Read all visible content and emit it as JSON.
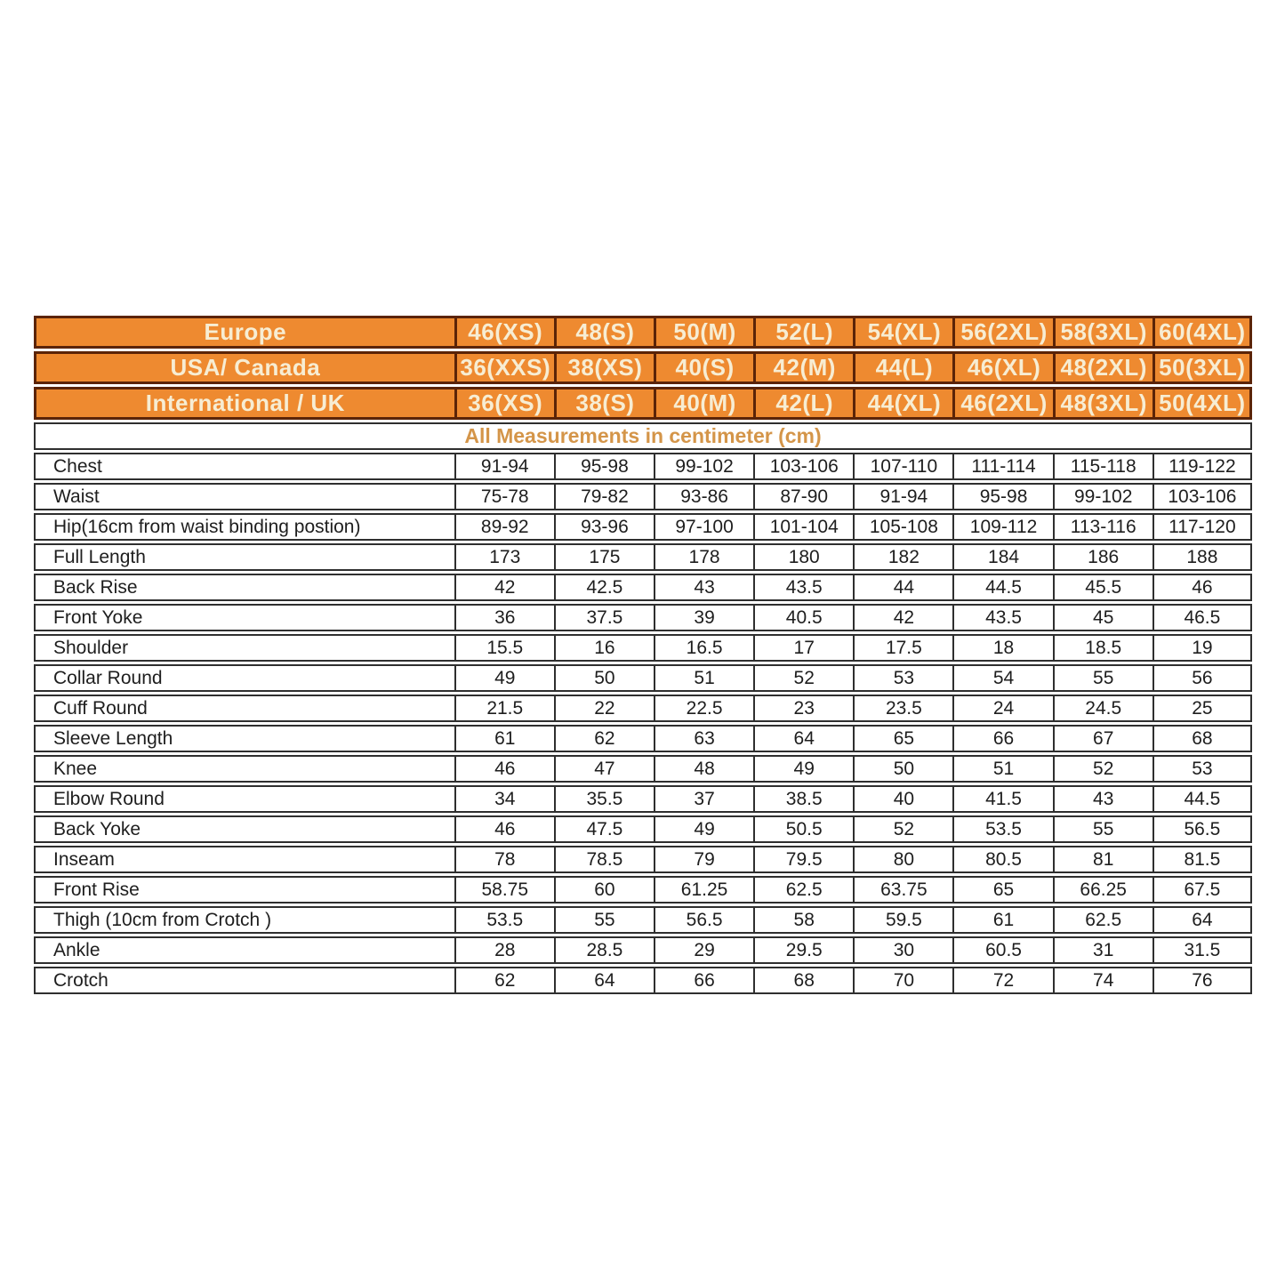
{
  "table": {
    "note": "All Measurements in centimeter (cm)",
    "header_rows": [
      {
        "label": "Europe",
        "sizes": [
          "46(XS)",
          "48(S)",
          "50(M)",
          "52(L)",
          "54(XL)",
          "56(2XL)",
          "58(3XL)",
          "60(4XL)"
        ]
      },
      {
        "label": "USA/ Canada",
        "sizes": [
          "36(XXS)",
          "38(XS)",
          "40(S)",
          "42(M)",
          "44(L)",
          "46(XL)",
          "48(2XL)",
          "50(3XL)"
        ]
      },
      {
        "label": "International / UK",
        "sizes": [
          "36(XS)",
          "38(S)",
          "40(M)",
          "42(L)",
          "44(XL)",
          "46(2XL)",
          "48(3XL)",
          "50(4XL)"
        ]
      }
    ],
    "rows": [
      {
        "label": "Chest",
        "values": [
          "91-94",
          "95-98",
          "99-102",
          "103-106",
          "107-110",
          "111-114",
          "115-118",
          "119-122"
        ]
      },
      {
        "label": "Waist",
        "values": [
          "75-78",
          "79-82",
          "93-86",
          "87-90",
          "91-94",
          "95-98",
          "99-102",
          "103-106"
        ]
      },
      {
        "label": "Hip(16cm from waist binding postion)",
        "values": [
          "89-92",
          "93-96",
          "97-100",
          "101-104",
          "105-108",
          "109-112",
          "113-116",
          "117-120"
        ]
      },
      {
        "label": "Full Length",
        "values": [
          "173",
          "175",
          "178",
          "180",
          "182",
          "184",
          "186",
          "188"
        ]
      },
      {
        "label": "Back Rise",
        "values": [
          "42",
          "42.5",
          "43",
          "43.5",
          "44",
          "44.5",
          "45.5",
          "46"
        ]
      },
      {
        "label": "Front Yoke",
        "values": [
          "36",
          "37.5",
          "39",
          "40.5",
          "42",
          "43.5",
          "45",
          "46.5"
        ]
      },
      {
        "label": "Shoulder",
        "values": [
          "15.5",
          "16",
          "16.5",
          "17",
          "17.5",
          "18",
          "18.5",
          "19"
        ]
      },
      {
        "label": "Collar Round",
        "values": [
          "49",
          "50",
          "51",
          "52",
          "53",
          "54",
          "55",
          "56"
        ]
      },
      {
        "label": "Cuff Round",
        "values": [
          "21.5",
          "22",
          "22.5",
          "23",
          "23.5",
          "24",
          "24.5",
          "25"
        ]
      },
      {
        "label": "Sleeve Length",
        "values": [
          "61",
          "62",
          "63",
          "64",
          "65",
          "66",
          "67",
          "68"
        ]
      },
      {
        "label": "Knee",
        "values": [
          "46",
          "47",
          "48",
          "49",
          "50",
          "51",
          "52",
          "53"
        ]
      },
      {
        "label": "Elbow Round",
        "values": [
          "34",
          "35.5",
          "37",
          "38.5",
          "40",
          "41.5",
          "43",
          "44.5"
        ]
      },
      {
        "label": "Back Yoke",
        "values": [
          "46",
          "47.5",
          "49",
          "50.5",
          "52",
          "53.5",
          "55",
          "56.5"
        ]
      },
      {
        "label": "Inseam",
        "values": [
          "78",
          "78.5",
          "79",
          "79.5",
          "80",
          "80.5",
          "81",
          "81.5"
        ]
      },
      {
        "label": "Front Rise",
        "values": [
          "58.75",
          "60",
          "61.25",
          "62.5",
          "63.75",
          "65",
          "66.25",
          "67.5"
        ]
      },
      {
        "label": "Thigh (10cm from Crotch )",
        "values": [
          "53.5",
          "55",
          "56.5",
          "58",
          "59.5",
          "61",
          "62.5",
          "64"
        ]
      },
      {
        "label": "Ankle",
        "values": [
          "28",
          "28.5",
          "29",
          "29.5",
          "30",
          "60.5",
          "31",
          "31.5"
        ]
      },
      {
        "label": "Crotch",
        "values": [
          "62",
          "64",
          "66",
          "68",
          "70",
          "72",
          "74",
          "76"
        ]
      }
    ],
    "colors": {
      "header_bg": "#ee8a30",
      "header_text": "#f7edd3",
      "header_border": "#5b2408",
      "body_border": "#2f2f2f",
      "note_text": "#d49549",
      "body_text": "#1e1e1e"
    }
  }
}
